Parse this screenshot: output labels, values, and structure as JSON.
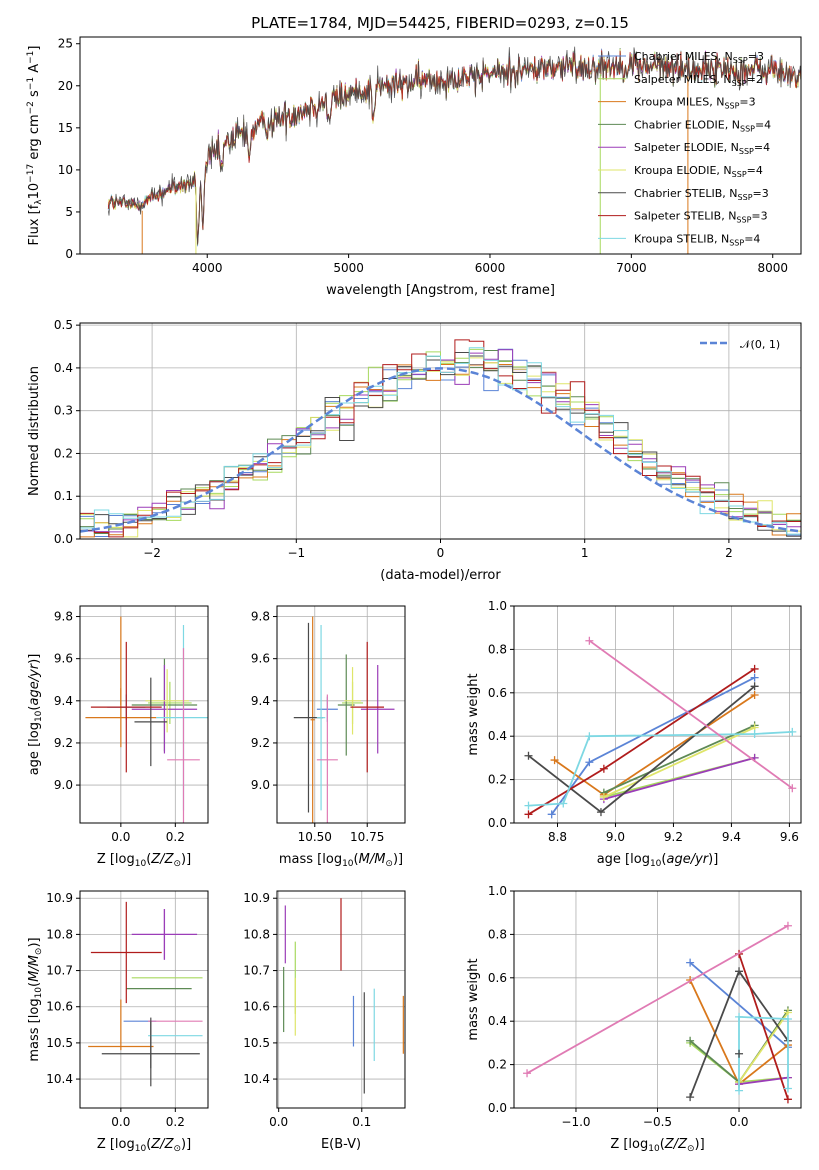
{
  "figure_title": "PLATE=1784, MJD=54425, FIBERID=0293, z=0.15",
  "models": [
    {
      "name": "Chabrier MILES",
      "nssp": "3",
      "color": "#5b84d6"
    },
    {
      "name": "Salpeter MILES",
      "nssp": "2",
      "color": "#a7d95f"
    },
    {
      "name": "Kroupa MILES",
      "nssp": "3",
      "color": "#d9781c"
    },
    {
      "name": "Chabrier ELODIE",
      "nssp": "4",
      "color": "#5e8a55"
    },
    {
      "name": "Salpeter ELODIE",
      "nssp": "4",
      "color": "#9b3db8"
    },
    {
      "name": "Kroupa ELODIE",
      "nssp": "4",
      "color": "#dfe56a"
    },
    {
      "name": "Chabrier STELIB",
      "nssp": "3",
      "color": "#4a4a4a"
    },
    {
      "name": "Salpeter STELIB",
      "nssp": "3",
      "color": "#b01c1c"
    },
    {
      "name": "Kroupa STELIB",
      "nssp": "4",
      "color": "#7ed8e3"
    }
  ],
  "chart_data": [
    {
      "id": "spectrum",
      "type": "line",
      "xlabel": "wavelength [Angstrom, rest frame]",
      "ylabel": "Flux [f_λ 10^-17 erg cm^-2 s^-1 A^-1]",
      "xlim": [
        3100,
        8200
      ],
      "ylim": [
        0,
        25.8
      ],
      "xticks": [
        4000,
        5000,
        6000,
        7000,
        8000
      ],
      "yticks": [
        0,
        5,
        10,
        15,
        20,
        25
      ],
      "grid": false,
      "legend": "top-right",
      "data_span": [
        3300,
        8200
      ],
      "continuum": [
        [
          3300,
          6.2
        ],
        [
          3500,
          5.8
        ],
        [
          3700,
          7.5
        ],
        [
          3900,
          8.5
        ],
        [
          4000,
          11.0
        ],
        [
          4200,
          14.0
        ],
        [
          4500,
          16.0
        ],
        [
          4800,
          18.0
        ],
        [
          5100,
          19.5
        ],
        [
          5500,
          20.5
        ],
        [
          6000,
          21.5
        ],
        [
          6500,
          22.2
        ],
        [
          7000,
          22.5
        ],
        [
          7500,
          22.0
        ],
        [
          8000,
          21.8
        ],
        [
          8200,
          21.0
        ]
      ],
      "absorption": [
        [
          3934,
          8.0
        ],
        [
          3969,
          7.0
        ],
        [
          4102,
          2.5
        ],
        [
          4300,
          3.0
        ],
        [
          4861,
          3.0
        ],
        [
          5175,
          3.5
        ],
        [
          5890,
          2.0
        ]
      ],
      "dropouts": [
        {
          "x": 3540,
          "color": "#d9781c"
        },
        {
          "x": 3920,
          "color": "#dfe56a"
        },
        {
          "x": 6780,
          "color": "#a7d95f"
        },
        {
          "x": 7400,
          "color": "#d9781c"
        }
      ]
    },
    {
      "id": "residuals",
      "type": "line",
      "xlabel": "(data-model)/error",
      "ylabel": "Normed distribution",
      "xlim": [
        -2.5,
        2.5
      ],
      "ylim": [
        0,
        0.505
      ],
      "xticks": [
        -2,
        -1,
        0,
        1,
        2
      ],
      "yticks": [
        0.0,
        0.1,
        0.2,
        0.3,
        0.4,
        0.5
      ],
      "grid": true,
      "legend": "top-right",
      "reference": {
        "name": "𝒩(0, 1)",
        "color": "#5b84d6"
      },
      "bin_width": 0.1
    },
    {
      "id": "age_vs_Z",
      "type": "scatter",
      "xlabel": "Z [log10(Z/Z⊙)]",
      "ylabel": "age [log10(age/yr)]",
      "xlim": [
        -0.15,
        0.32
      ],
      "ylim": [
        8.82,
        9.85
      ],
      "xticks": [
        0.0,
        0.2
      ],
      "yticks": [
        9.0,
        9.2,
        9.4,
        9.6,
        9.8
      ],
      "grid": true,
      "points": [
        {
          "model": 0,
          "x": 0.02,
          "y": 9.37,
          "ex": 0.07,
          "ey": 0.06
        },
        {
          "model": 1,
          "x": 0.18,
          "y": 9.39,
          "ex": 0.08,
          "ey": 0.1
        },
        {
          "model": 2,
          "x": 0.0,
          "y": 9.32,
          "ex": 0.13,
          "ey": 0.14
        },
        {
          "model": 3,
          "x": 0.16,
          "y": 9.38,
          "ex": 0.12,
          "ey": 0.22
        },
        {
          "model": 4,
          "x": 0.16,
          "y": 9.36,
          "ex": 0.12,
          "ey": 0.21
        },
        {
          "model": 5,
          "x": 0.17,
          "y": 9.4,
          "ex": 0.08,
          "ey": 0.15
        },
        {
          "model": 6,
          "x": 0.11,
          "y": 9.3,
          "ex": 0.06,
          "ey": 0.21
        },
        {
          "model": 7,
          "x": 0.02,
          "y": 9.37,
          "ex": 0.13,
          "ey": 0.31
        },
        {
          "model": 8,
          "x": 0.23,
          "y": 9.32,
          "ex": 0.1,
          "ey": 0.44
        }
      ],
      "extra_points": [
        {
          "color": "#e07bb4",
          "x": 0.23,
          "y": 9.12,
          "ex": 0.06,
          "ey": 0.53
        },
        {
          "color": "#d9781c",
          "x": 0.0,
          "y": 9.59,
          "ex": 0.0,
          "ey": 0.21
        }
      ]
    },
    {
      "id": "age_vs_mass",
      "type": "scatter",
      "xlabel": "mass [log10(M/M⊙)]",
      "ylabel": "",
      "xlim": [
        10.32,
        10.93
      ],
      "ylim": [
        8.82,
        9.85
      ],
      "xticks": [
        10.5,
        10.75
      ],
      "yticks": [
        9.0,
        9.2,
        9.4,
        9.6,
        9.8
      ],
      "grid": true,
      "points": [
        {
          "model": 0,
          "x": 10.56,
          "y": 9.36,
          "ex": 0.05,
          "ey": 0.06
        },
        {
          "model": 1,
          "x": 10.68,
          "y": 9.39,
          "ex": 0.05,
          "ey": 0.1
        },
        {
          "model": 2,
          "x": 10.49,
          "y": 9.31,
          "ex": 0.01,
          "ey": 0.49
        },
        {
          "model": 3,
          "x": 10.65,
          "y": 9.38,
          "ex": 0.04,
          "ey": 0.24
        },
        {
          "model": 4,
          "x": 10.8,
          "y": 9.36,
          "ex": 0.08,
          "ey": 0.21
        },
        {
          "model": 5,
          "x": 10.68,
          "y": 9.4,
          "ex": 0.04,
          "ey": 0.16
        },
        {
          "model": 6,
          "x": 10.47,
          "y": 9.32,
          "ex": 0.07,
          "ey": 0.45
        },
        {
          "model": 7,
          "x": 10.75,
          "y": 9.37,
          "ex": 0.08,
          "ey": 0.31
        },
        {
          "model": 8,
          "x": 10.53,
          "y": 9.32,
          "ex": 0.02,
          "ey": 0.44
        }
      ],
      "extra_points": [
        {
          "color": "#e07bb4",
          "x": 10.56,
          "y": 9.12,
          "ex": 0.05,
          "ey": 0.31
        }
      ]
    },
    {
      "id": "massweight_vs_age",
      "type": "line",
      "xlabel": "age [log10(age/yr)]",
      "ylabel": "mass weight",
      "xlim": [
        8.65,
        9.64
      ],
      "ylim": [
        0,
        1.0
      ],
      "xticks": [
        8.8,
        9.0,
        9.2,
        9.4,
        9.6
      ],
      "yticks": [
        0.0,
        0.2,
        0.4,
        0.6,
        0.8,
        1.0
      ],
      "grid": true,
      "series": [
        {
          "model": 0,
          "x": [
            8.78,
            8.91,
            9.48
          ],
          "y": [
            0.04,
            0.28,
            0.67
          ]
        },
        {
          "model": 1,
          "x": [
            8.96,
            9.48
          ],
          "y": [
            0.12,
            0.3
          ]
        },
        {
          "model": 2,
          "x": [
            8.79,
            8.96,
            9.48
          ],
          "y": [
            0.29,
            0.13,
            0.59
          ]
        },
        {
          "model": 3,
          "x": [
            8.96,
            9.48
          ],
          "y": [
            0.14,
            0.45
          ]
        },
        {
          "model": 4,
          "x": [
            8.96,
            9.48
          ],
          "y": [
            0.11,
            0.3
          ]
        },
        {
          "model": 5,
          "x": [
            8.96,
            9.48
          ],
          "y": [
            0.12,
            0.44
          ]
        },
        {
          "model": 6,
          "x": [
            8.7,
            8.95,
            9.48
          ],
          "y": [
            0.31,
            0.05,
            0.63
          ]
        },
        {
          "model": 7,
          "x": [
            8.7,
            8.96,
            9.48
          ],
          "y": [
            0.04,
            0.25,
            0.71
          ]
        },
        {
          "model": 8,
          "x": [
            8.7,
            8.82,
            8.91,
            9.48,
            9.61
          ],
          "y": [
            0.08,
            0.09,
            0.4,
            0.41,
            0.42
          ]
        },
        {
          "color": "#e07bb4",
          "x": [
            8.91,
            9.61
          ],
          "y": [
            0.84,
            0.16
          ]
        }
      ]
    },
    {
      "id": "mass_vs_Z",
      "type": "scatter",
      "xlabel": "Z [log10(Z/Z⊙)]",
      "ylabel": "mass [log10(M/M⊙)]",
      "xlim": [
        -0.15,
        0.32
      ],
      "ylim": [
        10.32,
        10.92
      ],
      "xticks": [
        0.0,
        0.2
      ],
      "yticks": [
        10.4,
        10.5,
        10.6,
        10.7,
        10.8,
        10.9
      ],
      "grid": true,
      "points": [
        {
          "model": 0,
          "x": 0.07,
          "y": 10.56,
          "ex": 0.06,
          "ey": 0.0
        },
        {
          "model": 1,
          "x": 0.17,
          "y": 10.68,
          "ex": 0.13,
          "ey": 0.0
        },
        {
          "model": 2,
          "x": 0.0,
          "y": 10.49,
          "ex": 0.12,
          "ey": 0.0
        },
        {
          "model": 3,
          "x": 0.14,
          "y": 10.65,
          "ex": 0.12,
          "ey": 0.0
        },
        {
          "model": 4,
          "x": 0.16,
          "y": 10.8,
          "ex": 0.12,
          "ey": 0.07
        },
        {
          "model": 5,
          "x": 0.16,
          "y": 10.68,
          "ex": 0.0,
          "ey": 0.0
        },
        {
          "model": 6,
          "x": 0.11,
          "y": 10.47,
          "ex": 0.18,
          "ey": 0.09
        },
        {
          "model": 7,
          "x": 0.02,
          "y": 10.75,
          "ex": 0.13,
          "ey": 0.14
        },
        {
          "model": 8,
          "x": 0.2,
          "y": 10.52,
          "ex": 0.1,
          "ey": 0.0
        }
      ],
      "extra_points": [
        {
          "color": "#e07bb4",
          "x": 0.2,
          "y": 10.56,
          "ex": 0.1,
          "ey": 0.0
        },
        {
          "color": "#d9781c",
          "x": 0.0,
          "y": 10.55,
          "ex": 0.0,
          "ey": 0.07
        },
        {
          "color": "#4a4a4a",
          "x": 0.11,
          "y": 10.5,
          "ex": 0.0,
          "ey": 0.07
        },
        {
          "color": "#9b3db8",
          "x": 0.16,
          "y": 10.8,
          "ex": 0.0,
          "ey": 0.07
        }
      ]
    },
    {
      "id": "mass_vs_EBV",
      "type": "scatter",
      "xlabel": "E(B-V)",
      "ylabel": "",
      "xlim": [
        -0.002,
        0.152
      ],
      "ylim": [
        10.32,
        10.92
      ],
      "xticks": [
        0.0,
        0.1
      ],
      "yticks": [
        10.4,
        10.5,
        10.6,
        10.7,
        10.8,
        10.9
      ],
      "grid": true,
      "points": [
        {
          "model": 0,
          "x": 0.09,
          "y": 10.56,
          "ex": 0.0,
          "ey": 0.07
        },
        {
          "model": 1,
          "x": 0.02,
          "y": 10.68,
          "ex": 0.0,
          "ey": 0.1
        },
        {
          "model": 2,
          "x": 0.15,
          "y": 10.55,
          "ex": 0.0,
          "ey": 0.08
        },
        {
          "model": 3,
          "x": 0.006,
          "y": 10.62,
          "ex": 0.0,
          "ey": 0.09
        },
        {
          "model": 4,
          "x": 0.008,
          "y": 10.8,
          "ex": 0.0,
          "ey": 0.08
        },
        {
          "model": 5,
          "x": 0.02,
          "y": 10.6,
          "ex": 0.0,
          "ey": 0.08
        },
        {
          "model": 6,
          "x": 0.103,
          "y": 10.5,
          "ex": 0.0,
          "ey": 0.14
        },
        {
          "model": 7,
          "x": 0.075,
          "y": 10.8,
          "ex": 0.0,
          "ey": 0.1
        },
        {
          "model": 8,
          "x": 0.115,
          "y": 10.55,
          "ex": 0.0,
          "ey": 0.1
        }
      ]
    },
    {
      "id": "massweight_vs_Z",
      "type": "line",
      "xlabel": "Z [log10(Z/Z⊙)]",
      "ylabel": "mass weight",
      "xlim": [
        -1.38,
        0.38
      ],
      "ylim": [
        0,
        1.0
      ],
      "xticks": [
        -1.0,
        -0.5,
        0.0
      ],
      "yticks": [
        0.0,
        0.2,
        0.4,
        0.6,
        0.8,
        1.0
      ],
      "grid": true,
      "series": [
        {
          "model": 0,
          "x": [
            -0.3,
            0.3
          ],
          "y": [
            0.67,
            0.28
          ]
        },
        {
          "model": 1,
          "x": [
            -0.3,
            0.0,
            0.3
          ],
          "y": [
            0.3,
            0.12,
            0.14
          ]
        },
        {
          "model": 2,
          "x": [
            -0.3,
            0.0,
            0.3
          ],
          "y": [
            0.59,
            0.11,
            0.29
          ]
        },
        {
          "model": 3,
          "x": [
            -0.3,
            0.0,
            0.3
          ],
          "y": [
            0.31,
            0.12,
            0.45
          ]
        },
        {
          "model": 4,
          "x": [
            0.0,
            0.3
          ],
          "y": [
            0.11,
            0.14
          ]
        },
        {
          "model": 5,
          "x": [
            0.0,
            0.3
          ],
          "y": [
            0.12,
            0.44
          ]
        },
        {
          "model": 6,
          "x": [
            -0.3,
            0.0,
            0.3
          ],
          "y": [
            0.05,
            0.63,
            0.31
          ]
        },
        {
          "model": 7,
          "x": [
            0.0,
            0.3
          ],
          "y": [
            0.71,
            0.04
          ]
        },
        {
          "model": 8,
          "x": [
            0.0,
            0.0,
            0.3,
            0.3
          ],
          "y": [
            0.08,
            0.42,
            0.41,
            0.09
          ]
        },
        {
          "color": "#e07bb4",
          "x": [
            -1.3,
            0.3
          ],
          "y": [
            0.16,
            0.84
          ]
        }
      ],
      "extra_marker": {
        "x": 0.0,
        "y": 0.25,
        "color": "#4a4a4a"
      }
    }
  ]
}
